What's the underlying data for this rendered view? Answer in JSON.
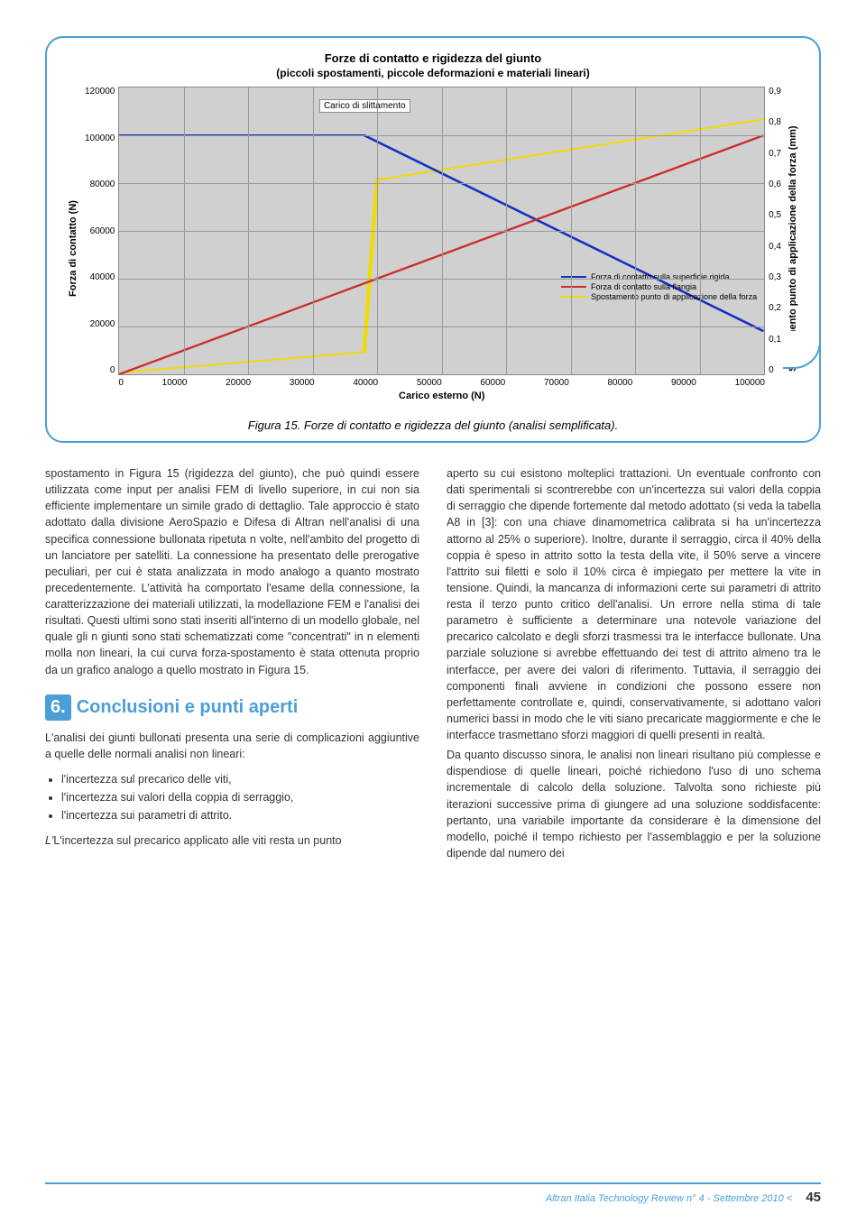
{
  "chart": {
    "title": "Forze di contatto e rigidezza del giunto",
    "subtitle": "(piccoli spostamenti, piccole deformazioni e materiali lineari)",
    "caption": "Figura 15. Forze di contatto e rigidezza del giunto (analisi semplificata).",
    "xlabel": "Carico esterno (N)",
    "ylabel": "Forza di contatto (N)",
    "y2label": "Spostamento punto di applicazione della forza (mm)",
    "xticks": [
      "0",
      "10000",
      "20000",
      "30000",
      "40000",
      "50000",
      "60000",
      "70000",
      "80000",
      "90000",
      "100000"
    ],
    "yticks": [
      "120000",
      "100000",
      "80000",
      "60000",
      "40000",
      "20000",
      "0"
    ],
    "y2ticks": [
      "0,9",
      "0,8",
      "0,7",
      "0,6",
      "0,5",
      "0,4",
      "0,3",
      "0,2",
      "0,1",
      "0"
    ],
    "xlim": [
      0,
      100000
    ],
    "ylim": [
      0,
      120000
    ],
    "y2lim": [
      0,
      0.9
    ],
    "slip_label": "Carico di slittamento",
    "slip_x": 38000,
    "legend": {
      "blue": "Forza di contatto sulla superficie rigida",
      "red": "Forza di contatto sulla flangia",
      "yellow": "Spostamento punto di applicazione della forza"
    },
    "colors": {
      "blue": "#1330c2",
      "red": "#cc2c2c",
      "yellow": "#f2db00",
      "grid": "#999999",
      "plot_bg": "#d0d0d0",
      "frame": "#4a9fd8"
    },
    "series_blue": [
      [
        0,
        100000
      ],
      [
        38000,
        100000
      ],
      [
        100000,
        18000
      ]
    ],
    "series_red": [
      [
        0,
        0
      ],
      [
        100000,
        100000
      ]
    ],
    "series_yellow_y2": [
      [
        0,
        0.005
      ],
      [
        38000,
        0.07
      ],
      [
        40000,
        0.61
      ],
      [
        100000,
        0.8
      ]
    ]
  },
  "body": {
    "p1": "spostamento in Figura 15 (rigidezza del giunto), che può quindi essere utilizzata come input per analisi FEM di livello superiore, in cui non sia efficiente implementare un simile grado di dettaglio. Tale approccio è stato adottato dalla divisione AeroSpazio e Difesa di Altran nell'analisi di una specifica connessione bullonata ripetuta n volte, nell'ambito del progetto di un lanciatore per satelliti. La connessione ha presentato delle prerogative peculiari, per cui è stata analizzata in modo analogo a quanto mostrato precedentemente. L'attività ha comportato l'esame della connessione, la caratterizzazione dei materiali utilizzati, la modellazione FEM e l'analisi dei risultati. Questi ultimi sono stati inseriti all'interno di un modello globale, nel quale gli n giunti sono stati schematizzati come \"concentrati\" in n elementi molla non lineari, la cui curva forza-spostamento è stata ottenuta proprio da un grafico analogo a quello mostrato in Figura 15.",
    "section_num": "6.",
    "section_title": "Conclusioni e punti aperti",
    "p2": "L'analisi dei giunti bullonati presenta una serie di complicazioni aggiuntive a quelle delle normali analisi non lineari:",
    "bullets": [
      "l'incertezza sul precarico delle viti,",
      "l'incertezza sui valori della coppia di serraggio,",
      "l'incertezza sui parametri di attrito."
    ],
    "p3": "L'incertezza sul precarico applicato alle viti resta un punto",
    "p_right": "aperto su cui esistono molteplici trattazioni. Un eventuale confronto con dati sperimentali si scontrerebbe con un'incertezza sui valori della coppia di serraggio che dipende fortemente dal metodo adottato (si veda la tabella A8 in [3]: con una chiave dinamometrica calibrata si ha un'incertezza attorno al 25% o superiore). Inoltre, durante il serraggio, circa il 40% della coppia è speso in attrito sotto la testa della vite, il 50% serve a vincere l'attrito sui filetti e solo il 10% circa è impiegato per mettere la vite in tensione. Quindi, la mancanza di informazioni certe sui parametri di attrito resta il terzo punto critico dell'analisi. Un errore nella stima di tale parametro è sufficiente a determinare una notevole variazione del precarico calcolato e degli sforzi trasmessi tra le interfacce bullonate. Una parziale soluzione si avrebbe effettuando dei test di attrito almeno tra le interfacce, per avere dei valori di riferimento. Tuttavia, il serraggio dei componenti finali avviene in condizioni che possono essere non perfettamente controllate e, quindi, conservativamente, si adottano valori numerici bassi in modo che le viti siano precaricate maggiormente e che le interfacce trasmettano sforzi maggiori di quelli presenti in realtà.",
    "p_right2": "Da quanto discusso sinora, le analisi non lineari risultano più complesse e dispendiose di quelle lineari, poiché richiedono l'uso di uno schema incrementale di calcolo della soluzione. Talvolta sono richieste più iterazioni successive prima di giungere ad una soluzione soddisfacente: pertanto, una variabile importante da considerare è la dimensione del modello, poiché il tempo richiesto per l'assemblaggio e per la soluzione dipende dal numero dei"
  },
  "footer": {
    "text": "Altran Italia Technology Review n° 4 - Settembre 2010 <",
    "page": "45"
  }
}
